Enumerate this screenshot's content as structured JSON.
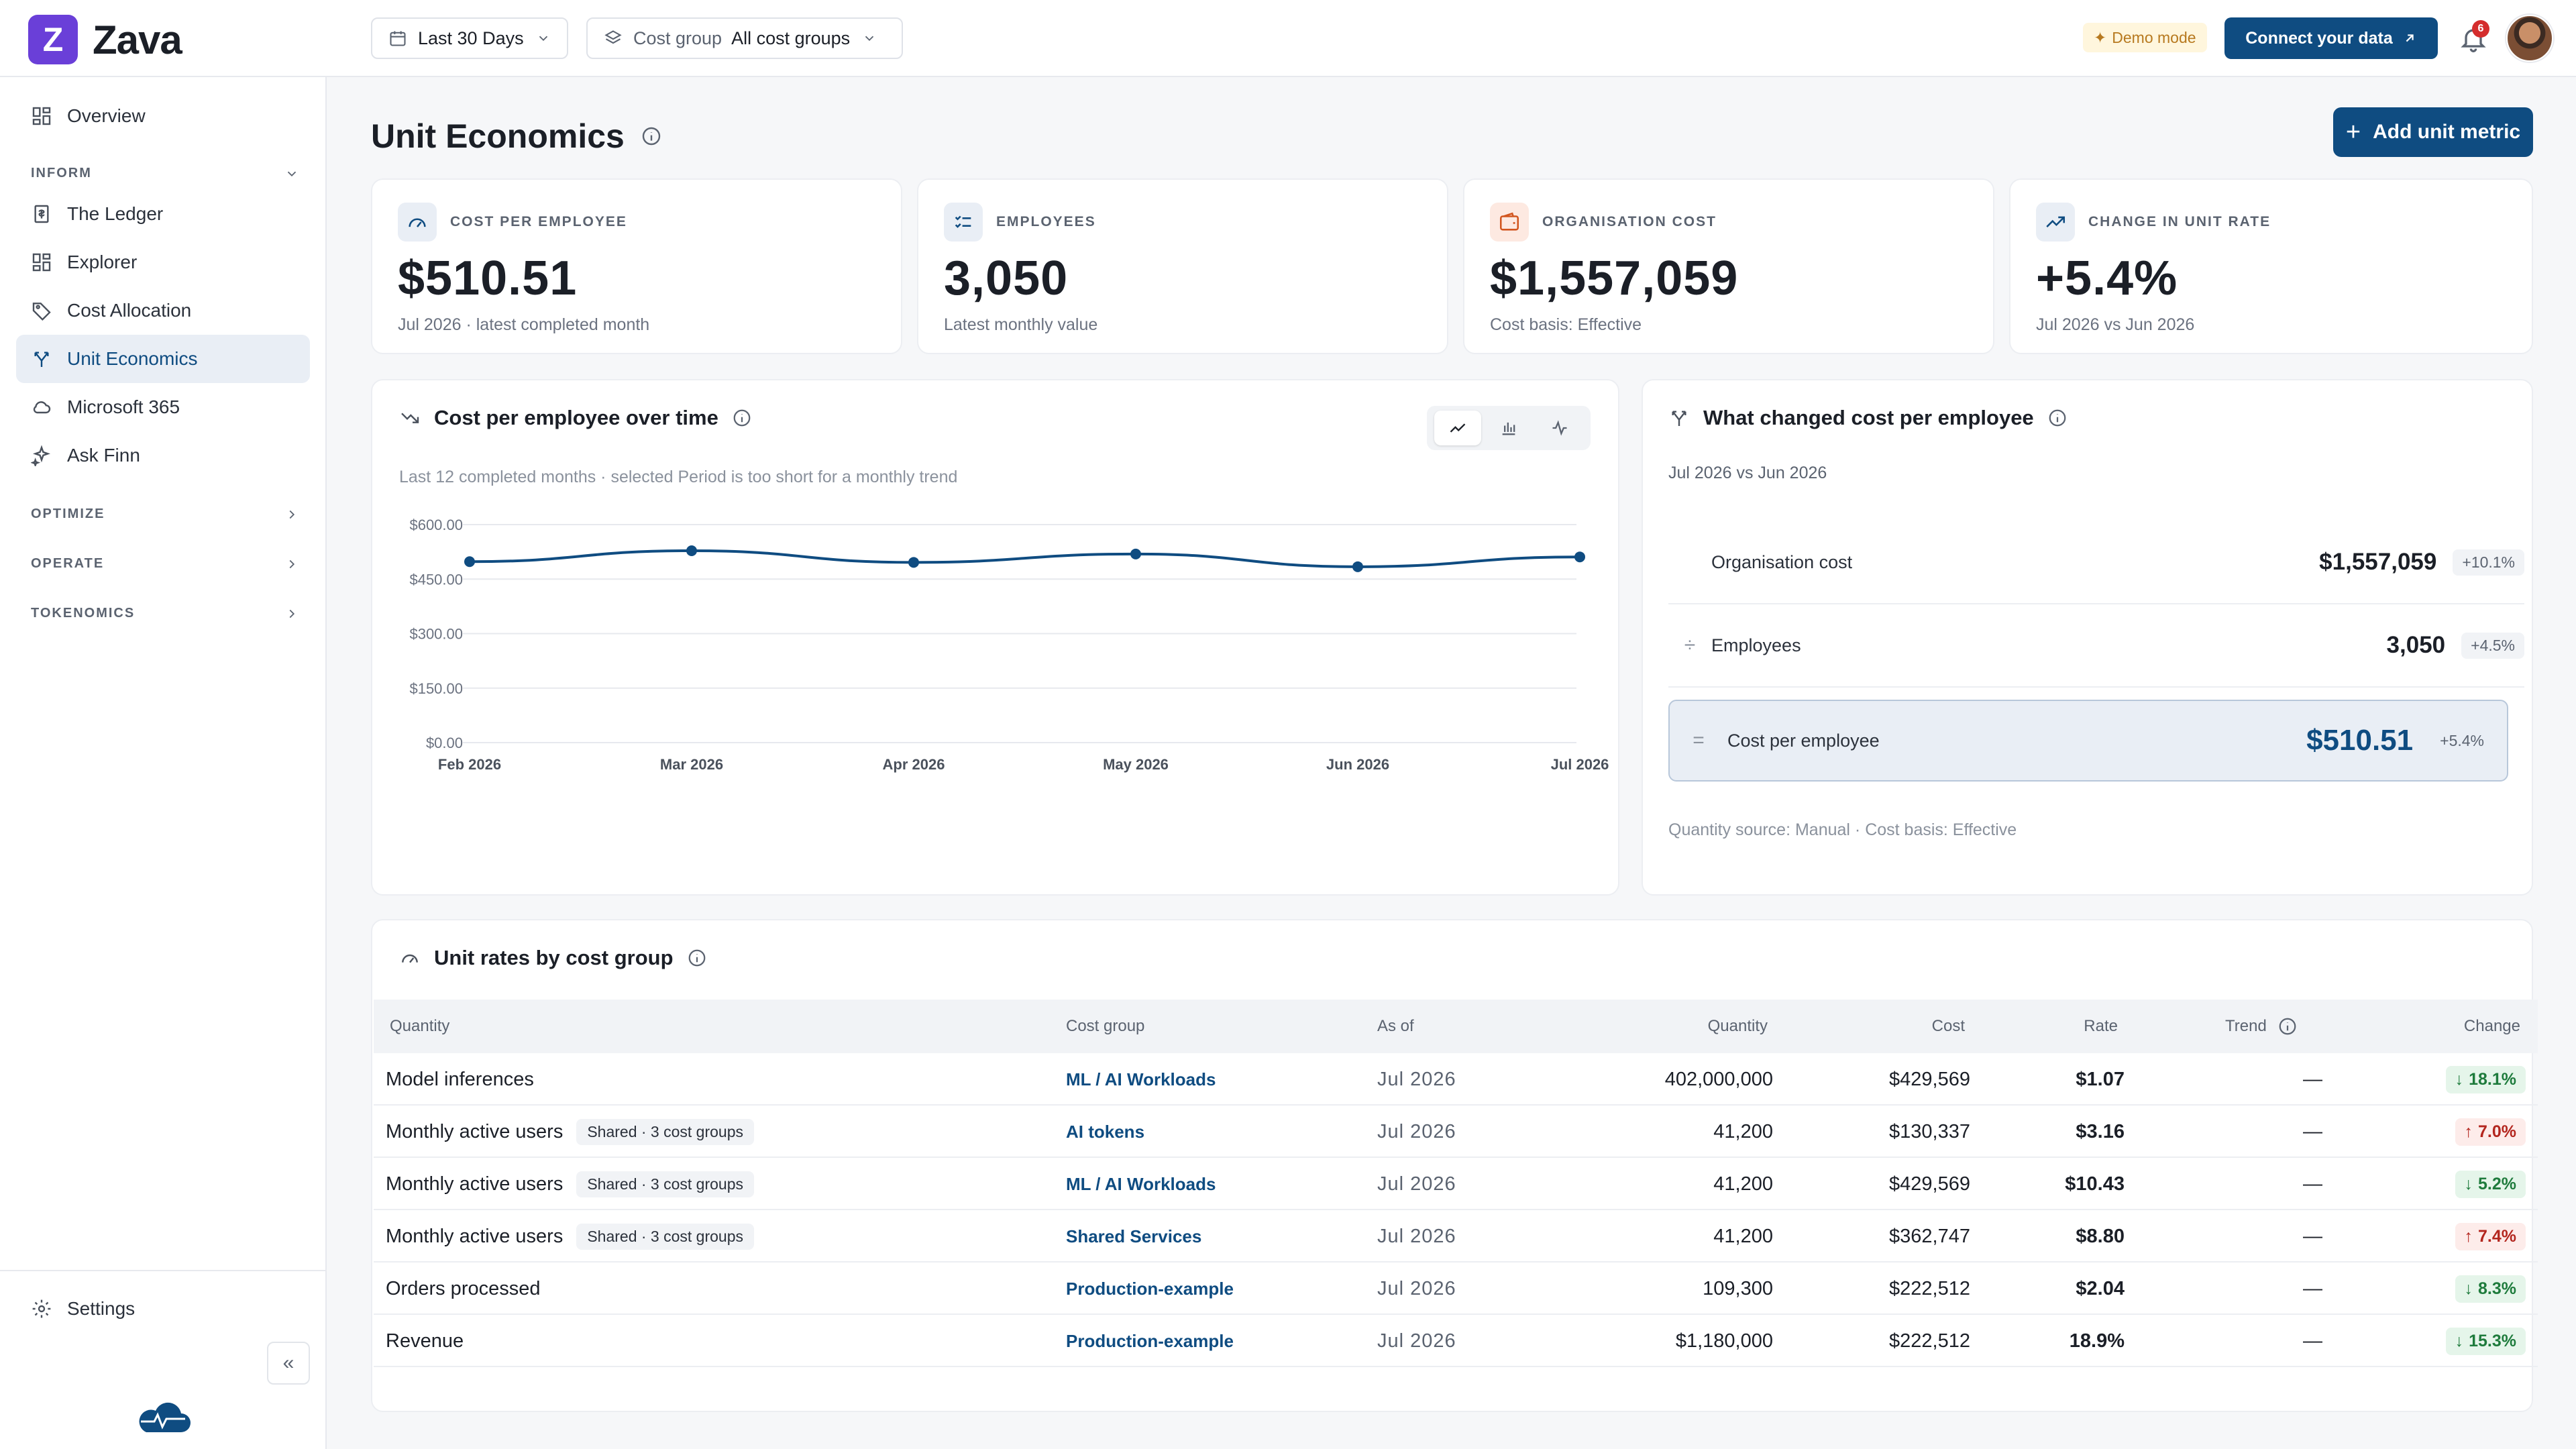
{
  "app": {
    "logo_letter": "Z",
    "name": "Zava"
  },
  "topbar": {
    "date_range": "Last 30 Days",
    "cost_group_label": "Cost group",
    "cost_group_value": "All cost groups",
    "demo_mode": "Demo mode",
    "connect_label": "Connect your data",
    "notification_count": "6"
  },
  "sidebar": {
    "overview": "Overview",
    "inform_label": "INFORM",
    "items": [
      "The Ledger",
      "Explorer",
      "Cost Allocation",
      "Unit Economics",
      "Microsoft 365",
      "Ask Finn"
    ],
    "sections": [
      "OPTIMIZE",
      "OPERATE",
      "TOKENOMICS"
    ],
    "settings": "Settings"
  },
  "page": {
    "title": "Unit Economics",
    "add_button": "Add unit metric"
  },
  "kpis": [
    {
      "label": "COST PER EMPLOYEE",
      "value": "$510.51",
      "sub": "Jul 2026 · latest completed month"
    },
    {
      "label": "EMPLOYEES",
      "value": "3,050",
      "sub": "Latest monthly value"
    },
    {
      "label": "ORGANISATION COST",
      "value": "$1,557,059",
      "sub": "Cost basis: Effective"
    },
    {
      "label": "CHANGE IN UNIT RATE",
      "value": "+5.4%",
      "sub": "Jul 2026 vs Jun 2026"
    }
  ],
  "chart_card": {
    "title": "Cost per employee over time",
    "subtitle": "Last 12 completed months · selected Period is too short for a monthly trend"
  },
  "chart_data": {
    "type": "line",
    "title": "Cost per employee over time",
    "x": [
      "Feb 2026",
      "Mar 2026",
      "Apr 2026",
      "May 2026",
      "Jun 2026",
      "Jul 2026"
    ],
    "series": [
      {
        "values": [
          498,
          528,
          496,
          519,
          484,
          511
        ]
      }
    ],
    "y_ticks": [
      "$600.00",
      "$450.00",
      "$300.00",
      "$150.00",
      "$0.00"
    ],
    "ylim": [
      0,
      600
    ],
    "grid": true,
    "color": "#0f4c81"
  },
  "what_changed": {
    "title": "What changed cost per employee",
    "subtitle": "Jul 2026 vs Jun 2026",
    "rows": [
      {
        "op": "",
        "label": "Organisation cost",
        "value": "$1,557,059",
        "change": "+10.1%"
      },
      {
        "op": "÷",
        "label": "Employees",
        "value": "3,050",
        "change": "+4.5%"
      }
    ],
    "result": {
      "op": "=",
      "label": "Cost per employee",
      "value": "$510.51",
      "change": "+5.4%"
    },
    "footer": "Quantity source: Manual · Cost basis: Effective"
  },
  "table": {
    "title": "Unit rates by cost group",
    "headers": [
      "Quantity",
      "Cost group",
      "As of",
      "Quantity",
      "Cost",
      "Rate",
      "Trend",
      "Change"
    ],
    "rows": [
      {
        "quantity": "Model inferences",
        "badge": "",
        "group": "ML / AI Workloads",
        "asof": "Jul 2026",
        "qty": "402,000,000",
        "cost": "$429,569",
        "rate": "$1.07",
        "trend": "—",
        "change": "18.1%",
        "dir": "down"
      },
      {
        "quantity": "Monthly active users",
        "badge": "Shared · 3 cost groups",
        "group": "AI tokens",
        "asof": "Jul 2026",
        "qty": "41,200",
        "cost": "$130,337",
        "rate": "$3.16",
        "trend": "—",
        "change": "7.0%",
        "dir": "up"
      },
      {
        "quantity": "Monthly active users",
        "badge": "Shared · 3 cost groups",
        "group": "ML / AI Workloads",
        "asof": "Jul 2026",
        "qty": "41,200",
        "cost": "$429,569",
        "rate": "$10.43",
        "trend": "—",
        "change": "5.2%",
        "dir": "down"
      },
      {
        "quantity": "Monthly active users",
        "badge": "Shared · 3 cost groups",
        "group": "Shared Services",
        "asof": "Jul 2026",
        "qty": "41,200",
        "cost": "$362,747",
        "rate": "$8.80",
        "trend": "—",
        "change": "7.4%",
        "dir": "up"
      },
      {
        "quantity": "Orders processed",
        "badge": "",
        "group": "Production-example",
        "asof": "Jul 2026",
        "qty": "109,300",
        "cost": "$222,512",
        "rate": "$2.04",
        "trend": "—",
        "change": "8.3%",
        "dir": "down"
      },
      {
        "quantity": "Revenue",
        "badge": "",
        "group": "Production-example",
        "asof": "Jul 2026",
        "qty": "$1,180,000",
        "cost": "$222,512",
        "rate": "18.9%",
        "trend": "—",
        "change": "15.3%",
        "dir": "down"
      }
    ]
  }
}
